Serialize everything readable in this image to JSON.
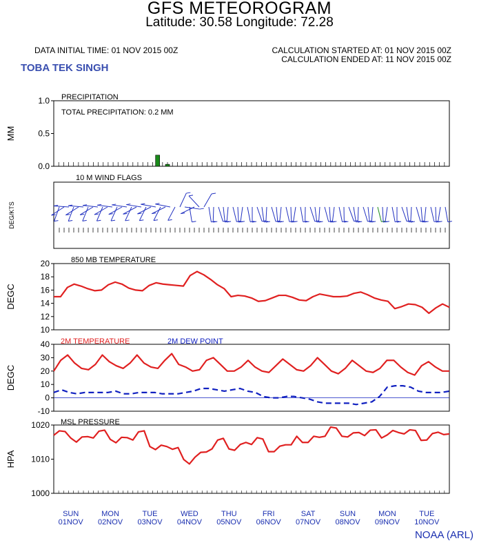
{
  "header": {
    "title": "GFS METEOROGRAM",
    "subtitle": "Latitude: 30.58 Longitude:  72.28",
    "initial_time": "DATA INITIAL TIME: 01 NOV 2015 00Z",
    "calc_started": "CALCULATION STARTED AT: 01 NOV 2015 00Z",
    "calc_ended": "CALCULATION ENDED AT: 11 NOV 2015 00Z",
    "location": "TOBA TEK SINGH",
    "credit": "NOAA (ARL)"
  },
  "chart_data": [
    {
      "type": "bar",
      "title": "PRECIPITATION",
      "annotation": "TOTAL PRECIPITATION:   0.2 MM",
      "ylabel": "MM",
      "ylim": [
        0,
        1
      ],
      "yticks": [
        "1.0",
        "0.5",
        "0.0"
      ],
      "x_step_hours": 3,
      "values": [
        {
          "x": 63,
          "v": 0.17
        },
        {
          "x": 69,
          "v": 0.03
        }
      ],
      "color": "#1a8a1a"
    },
    {
      "type": "wind-flags",
      "title": "10 M  WIND FLAGS",
      "ylabel": "DEG/KTS"
    },
    {
      "type": "line",
      "title": "850 MB  TEMPERATURE",
      "ylabel": "DEGC",
      "ylim": [
        10,
        20
      ],
      "yticks": [
        "20",
        "18",
        "16",
        "14",
        "12",
        "10"
      ],
      "x_step_hours": 6,
      "series": [
        {
          "color": "#e02020",
          "values": [
            15.0,
            15.0,
            16.4,
            16.9,
            16.6,
            16.2,
            15.9,
            16.0,
            16.8,
            17.2,
            16.9,
            16.3,
            16.0,
            15.9,
            16.7,
            17.1,
            16.9,
            16.8,
            16.7,
            16.6,
            18.2,
            18.8,
            18.3,
            17.6,
            16.8,
            16.2,
            15.0,
            15.2,
            15.1,
            14.8,
            14.3,
            14.4,
            14.8,
            15.2,
            15.2,
            14.9,
            14.5,
            14.4,
            15.0,
            15.4,
            15.2,
            15.0,
            15.0,
            15.1,
            15.5,
            15.7,
            15.3,
            14.8,
            14.5,
            14.3,
            13.2,
            13.5,
            13.9,
            13.8,
            13.4,
            12.5,
            13.3,
            13.9,
            13.4
          ]
        }
      ]
    },
    {
      "type": "line",
      "ylabel": "DEGC",
      "ylim": [
        -10,
        40
      ],
      "yticks": [
        "40",
        "30",
        "20",
        "10",
        "0",
        "-10"
      ],
      "x_step_hours": 6,
      "series": [
        {
          "name": "2M TEMPERATURE",
          "color": "#e02020",
          "dash": false,
          "values": [
            20,
            28,
            32,
            26,
            22,
            21,
            25,
            32,
            27,
            24,
            22,
            26,
            32,
            26,
            23,
            22,
            28,
            33,
            25,
            23,
            20,
            21,
            28,
            30,
            25,
            20,
            20,
            23,
            28,
            23,
            20,
            19,
            24,
            29,
            25,
            21,
            20,
            24,
            30,
            25,
            20,
            18,
            22,
            28,
            24,
            20,
            19,
            22,
            28,
            28,
            23,
            19,
            17,
            24,
            27,
            23,
            20,
            20
          ]
        },
        {
          "name": "2M  DEW POINT",
          "color": "#1020c0",
          "dash": true,
          "values": [
            4,
            6,
            4,
            3,
            4,
            4,
            4,
            4,
            5,
            3,
            3,
            4,
            4,
            4,
            3,
            3,
            3,
            4,
            5,
            7,
            7,
            6,
            5,
            6,
            7,
            5,
            4,
            1,
            0,
            0,
            1,
            1,
            0,
            -1,
            -3,
            -4,
            -4,
            -4,
            -4,
            -5,
            -4,
            -3,
            1,
            8,
            9,
            9,
            8,
            5,
            4,
            4,
            4,
            5
          ]
        }
      ]
    },
    {
      "type": "line",
      "title": "MSL PRESSURE",
      "ylabel": "HPA",
      "ylim": [
        1000,
        1020
      ],
      "yticks": [
        "1020",
        "1010",
        "1000"
      ],
      "x_step_hours": 6,
      "series": [
        {
          "color": "#e02020",
          "values": [
            1017.0,
            1018.3,
            1018.1,
            1016.2,
            1015.0,
            1016.5,
            1016.6,
            1016.2,
            1018.2,
            1018.5,
            1015.8,
            1014.8,
            1016.4,
            1016.3,
            1015.6,
            1018.0,
            1018.3,
            1013.7,
            1012.8,
            1014.1,
            1013.7,
            1012.9,
            1013.4,
            1009.9,
            1008.6,
            1010.6,
            1012.0,
            1012.1,
            1013.0,
            1015.6,
            1016.1,
            1013.0,
            1012.6,
            1014.3,
            1014.9,
            1014.3,
            1016.3,
            1015.9,
            1012.2,
            1012.2,
            1013.8,
            1014.2,
            1014.2,
            1016.7,
            1014.9,
            1014.9,
            1016.7,
            1016.4,
            1016.7,
            1019.4,
            1019.1,
            1016.7,
            1016.5,
            1017.7,
            1017.8,
            1016.9,
            1018.5,
            1018.6,
            1016.2,
            1017.1,
            1018.4,
            1017.8,
            1017.4,
            1018.6,
            1018.4,
            1015.5,
            1015.6,
            1017.5,
            1017.9,
            1017.2,
            1017.4
          ]
        }
      ]
    }
  ],
  "x_axis": {
    "days": [
      {
        "name": "SUN",
        "date": "01NOV"
      },
      {
        "name": "MON",
        "date": "02NOV"
      },
      {
        "name": "TUE",
        "date": "03NOV"
      },
      {
        "name": "WED",
        "date": "04NOV"
      },
      {
        "name": "THU",
        "date": "05NOV"
      },
      {
        "name": "FRI",
        "date": "06NOV"
      },
      {
        "name": "SAT",
        "date": "07NOV"
      },
      {
        "name": "SUN",
        "date": "08NOV"
      },
      {
        "name": "MON",
        "date": "09NOV"
      },
      {
        "name": "TUE",
        "date": "10NOV"
      }
    ]
  }
}
